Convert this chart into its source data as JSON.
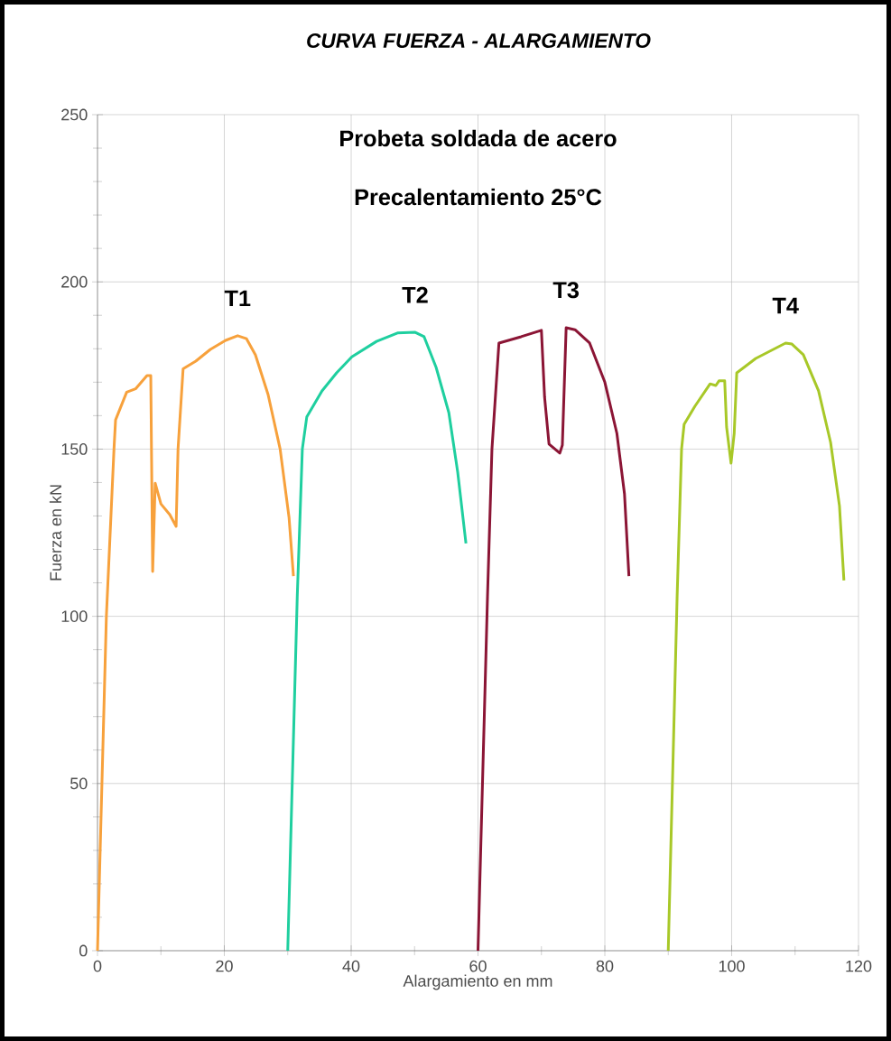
{
  "chart_data": {
    "type": "line",
    "title": "CURVA FUERZA - ALARGAMIENTO",
    "xlabel": "Alargamiento en mm",
    "ylabel": "Fuerza en kN",
    "annotations": [
      "Probeta soldada de acero",
      "Precalentamiento 25°C"
    ],
    "xlim": [
      0,
      120
    ],
    "ylim": [
      0,
      250
    ],
    "xticks": [
      0,
      20,
      40,
      60,
      80,
      100,
      120
    ],
    "yticks": [
      0,
      50,
      100,
      150,
      200,
      250
    ],
    "grid": true,
    "series": [
      {
        "name": "T1",
        "color": "#f7a13c",
        "x": [
          0,
          1.4,
          2.6,
          2.85,
          4.6,
          6.0,
          7.8,
          8.4,
          8.7,
          9.1,
          10,
          11.4,
          12.4,
          12.7,
          13.5,
          15.5,
          17.8,
          20.2,
          22.1,
          23.5,
          24.9,
          26.9,
          28.8,
          30.2,
          30.9
        ],
        "values": [
          0,
          100,
          150,
          158.7,
          167,
          168,
          172,
          172,
          113.4,
          139.8,
          133.6,
          130.4,
          126.9,
          150,
          174,
          176.3,
          179.8,
          182.5,
          183.9,
          183,
          178.2,
          166.3,
          150,
          129.6,
          112
        ]
      },
      {
        "name": "T2",
        "color": "#1fcf9f",
        "x": [
          30,
          31.5,
          32.3,
          33,
          35.4,
          37.7,
          40.1,
          44,
          47.3,
          50.1,
          51.5,
          53.4,
          55.4,
          56.8,
          58.1
        ],
        "values": [
          0,
          106,
          150,
          159.6,
          167.4,
          172.8,
          177.6,
          182.2,
          184.7,
          184.9,
          183.6,
          174.4,
          160.9,
          143.1,
          121.8
        ]
      },
      {
        "name": "T3",
        "color": "#8b1535",
        "x": [
          60,
          61.5,
          62.2,
          63.3,
          66.8,
          70,
          70.5,
          71.2,
          72.9,
          73.3,
          73.9,
          75.3,
          77.6,
          80,
          81.9,
          83.1,
          83.8
        ],
        "values": [
          0,
          106,
          150,
          181.7,
          183.6,
          185.5,
          165.5,
          151.5,
          148.8,
          151.2,
          186.3,
          185.7,
          181.7,
          170,
          154.7,
          136.6,
          112
        ]
      },
      {
        "name": "T4",
        "color": "#a8c828",
        "x": [
          90,
          91.4,
          92.1,
          92.5,
          94.2,
          96.6,
          97.5,
          98,
          98.9,
          99.2,
          99.9,
          100.4,
          100.8,
          103.8,
          108.5,
          109.5,
          111.3,
          113.7,
          115.6,
          117,
          117.7
        ],
        "values": [
          0,
          106,
          150,
          157.4,
          162.8,
          169.5,
          169,
          170.4,
          170.4,
          156.6,
          145.8,
          154.7,
          172.8,
          177.1,
          181.7,
          181.4,
          178.2,
          167.4,
          152,
          133,
          110.7
        ]
      }
    ]
  }
}
